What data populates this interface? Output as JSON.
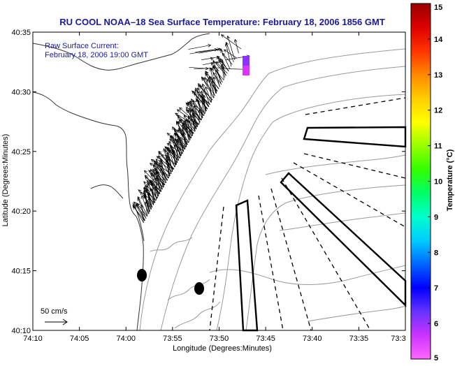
{
  "title": "RU COOL  NOAA–18  Sea Surface Temperature:  February 18, 2006 1856 GMT",
  "annotation": {
    "line1": "Raw Surface Current:",
    "line2": "February 18, 2006 19:00 GMT"
  },
  "scale_label": "50 cm/s",
  "x_axis": {
    "label": "Longitude (Degrees:Minutes)",
    "ticks": [
      "74:10",
      "74:05",
      "74:00",
      "73:55",
      "73:50",
      "73:45",
      "73:40",
      "73:35",
      "73:3"
    ]
  },
  "y_axis": {
    "label": "Latitude (Degrees:Minutes)",
    "ticks": [
      "40:35",
      "40:30",
      "40:25",
      "40:20",
      "40:15",
      "40:10"
    ]
  },
  "colorbar": {
    "label": "Temperature (°C)",
    "ticks": [
      "15",
      "14",
      "13",
      "12",
      "11",
      "10",
      "9",
      "8",
      "7",
      "6",
      "5"
    ],
    "colors": [
      "#ff66ff",
      "#cc33ff",
      "#6633ff",
      "#0000ff",
      "#0066ff",
      "#00ccff",
      "#00ffcc",
      "#00ff66",
      "#33ff00",
      "#99ff00",
      "#ffff00",
      "#ffcc00",
      "#ff8800",
      "#ff3300",
      "#dd0000",
      "#990000"
    ]
  },
  "colors": {
    "title": "#1a1aa0",
    "sst_patch": "#cc33ff",
    "sst_patch_edge": "#ff33cc"
  }
}
